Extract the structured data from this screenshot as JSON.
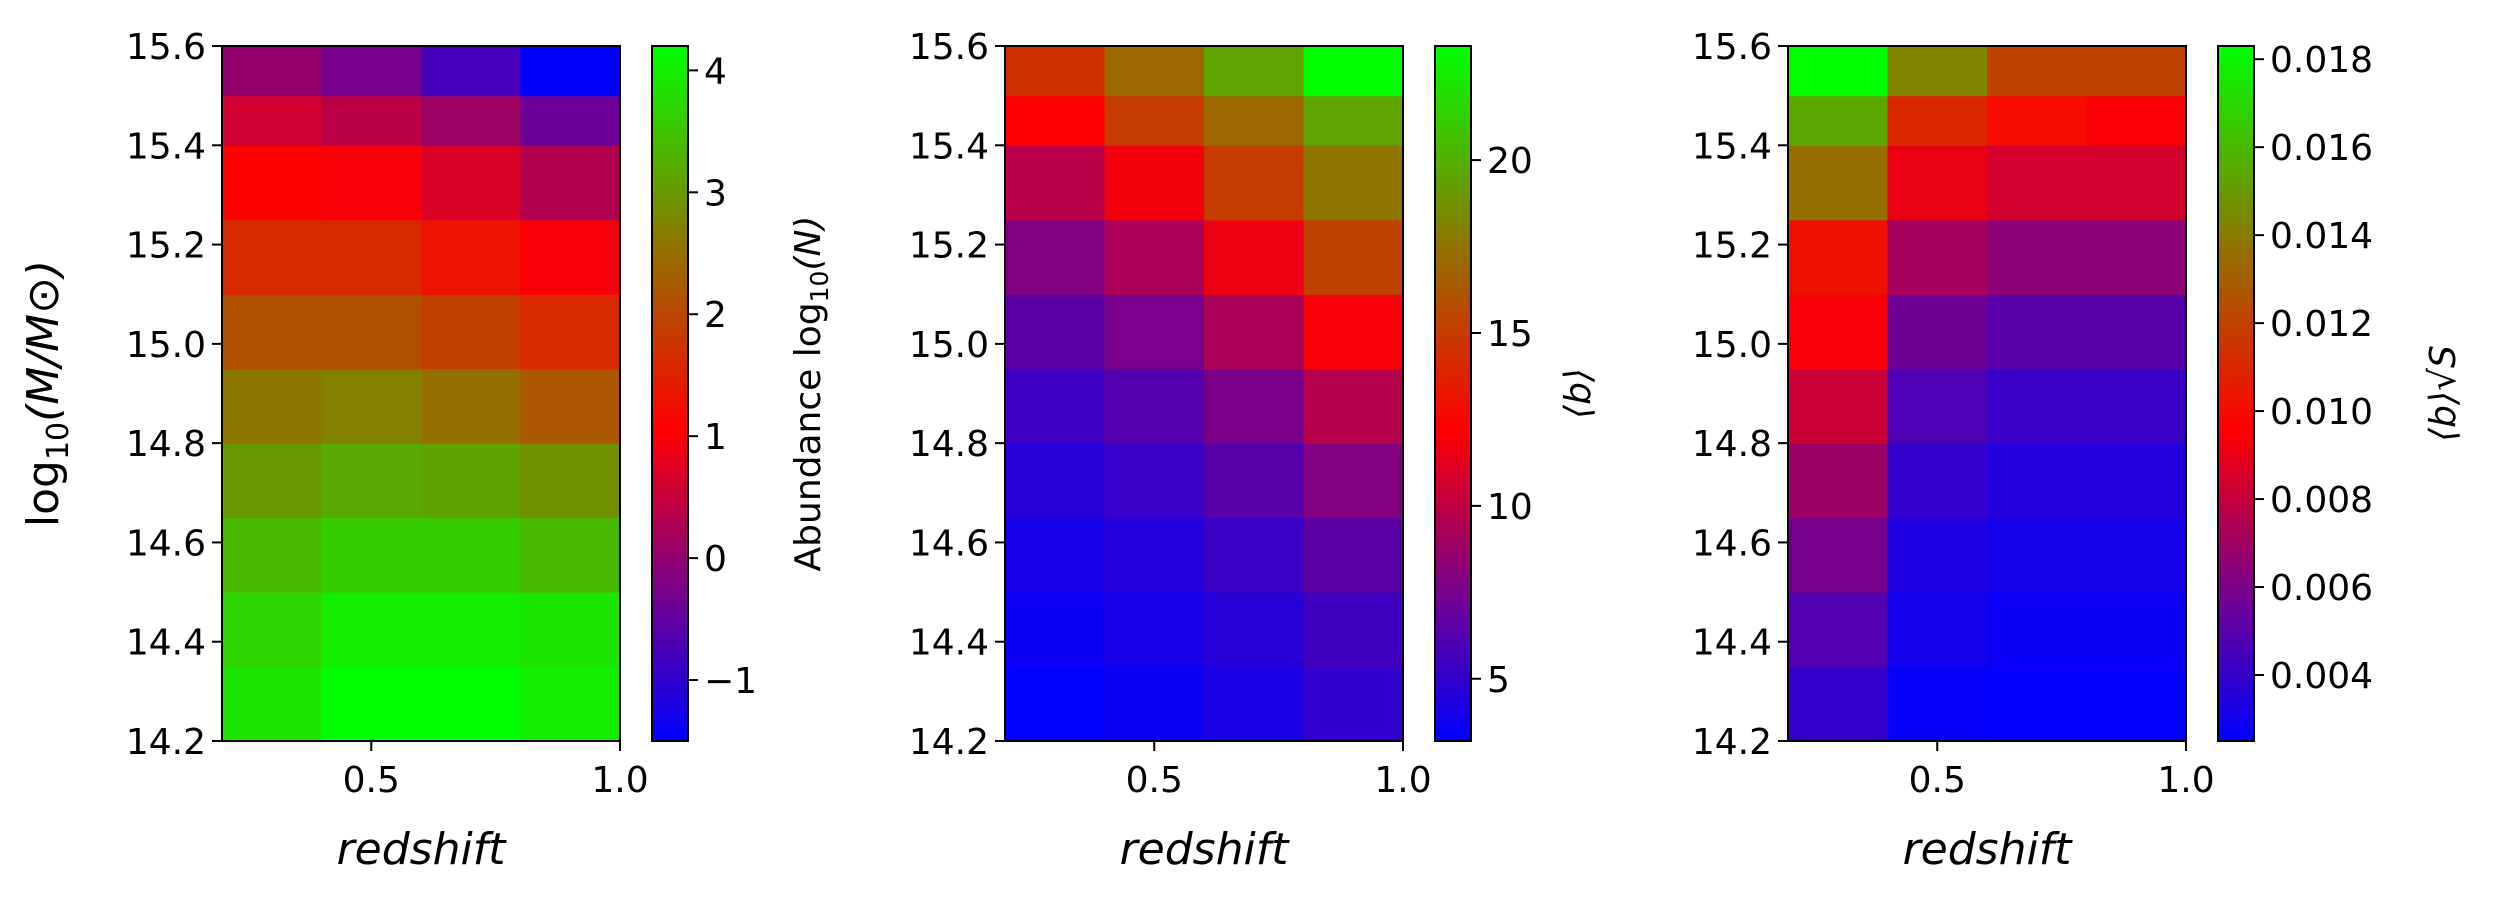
{
  "chart_data": [
    {
      "type": "heatmap",
      "xlabel": "redshift",
      "ylabel": "log10(M/M⊙)",
      "colorbar_label": "Abundance log10(N)",
      "xlim": [
        0.2,
        1.0
      ],
      "ylim": [
        14.2,
        15.6
      ],
      "x_bin_edges": [
        0.2,
        0.4,
        0.6,
        0.8,
        1.0
      ],
      "y_bin_edges": [
        14.2,
        14.35,
        14.5,
        14.65,
        14.8,
        14.95,
        15.1,
        15.25,
        15.4,
        15.5,
        15.6
      ],
      "x_ticks": [
        "0.5",
        "1.0"
      ],
      "y_ticks": [
        "14.2",
        "14.4",
        "14.6",
        "14.8",
        "15.0",
        "15.2",
        "15.4",
        "15.6"
      ],
      "colorbar_ticks": [
        "−1",
        "0",
        "1",
        "2",
        "3",
        "4"
      ],
      "colorbar_range": [
        -1.5,
        4.2
      ],
      "values_rows_bottom_to_top": [
        [
          3.9,
          4.2,
          4.2,
          4.0
        ],
        [
          3.7,
          4.0,
          4.0,
          3.9
        ],
        [
          3.4,
          3.6,
          3.6,
          3.4
        ],
        [
          3.0,
          3.2,
          3.1,
          2.9
        ],
        [
          2.6,
          2.7,
          2.5,
          2.2
        ],
        [
          2.1,
          2.1,
          1.9,
          1.6
        ],
        [
          1.6,
          1.6,
          1.3,
          1.0
        ],
        [
          1.1,
          1.0,
          0.7,
          0.3
        ],
        [
          0.6,
          0.4,
          0.1,
          -0.4
        ],
        [
          0.0,
          -0.3,
          -0.8,
          -1.5
        ]
      ]
    },
    {
      "type": "heatmap",
      "xlabel": "redshift",
      "colorbar_label": "⟨b⟩",
      "xlim": [
        0.2,
        1.0
      ],
      "ylim": [
        14.2,
        15.6
      ],
      "x_bin_edges": [
        0.2,
        0.4,
        0.6,
        0.8,
        1.0
      ],
      "y_bin_edges": [
        14.2,
        14.35,
        14.5,
        14.65,
        14.8,
        14.95,
        15.1,
        15.25,
        15.4,
        15.5,
        15.6
      ],
      "x_ticks": [
        "0.5",
        "1.0"
      ],
      "y_ticks": [
        "14.2",
        "14.4",
        "14.6",
        "14.8",
        "15.0",
        "15.2",
        "15.4",
        "15.6"
      ],
      "colorbar_ticks": [
        "5",
        "10",
        "15",
        "20"
      ],
      "colorbar_range": [
        3.2,
        23.3
      ],
      "values_rows_bottom_to_top": [
        [
          3.3,
          3.6,
          4.2,
          5.0
        ],
        [
          3.6,
          4.0,
          4.6,
          5.5
        ],
        [
          4.0,
          4.5,
          5.3,
          6.5
        ],
        [
          4.6,
          5.2,
          6.3,
          7.9
        ],
        [
          5.4,
          6.2,
          7.6,
          9.7
        ],
        [
          6.5,
          7.5,
          9.3,
          12.0
        ],
        [
          7.9,
          9.3,
          11.7,
          15.3
        ],
        [
          9.8,
          11.8,
          15.0,
          17.5
        ],
        [
          12.3,
          15.0,
          17.0,
          19.5
        ],
        [
          14.5,
          17.0,
          19.5,
          23.3
        ]
      ]
    },
    {
      "type": "heatmap",
      "xlabel": "redshift",
      "colorbar_label": "⟨b⟩√S",
      "xlim": [
        0.2,
        1.0
      ],
      "ylim": [
        14.2,
        15.6
      ],
      "x_bin_edges": [
        0.2,
        0.4,
        0.6,
        0.8,
        1.0
      ],
      "y_bin_edges": [
        14.2,
        14.35,
        14.5,
        14.65,
        14.8,
        14.95,
        15.1,
        15.25,
        15.4,
        15.5,
        15.6
      ],
      "x_ticks": [
        "0.5",
        "1.0"
      ],
      "y_ticks": [
        "14.2",
        "14.4",
        "14.6",
        "14.8",
        "15.0",
        "15.2",
        "15.4",
        "15.6"
      ],
      "colorbar_ticks": [
        "0.004",
        "0.006",
        "0.008",
        "0.010",
        "0.012",
        "0.014",
        "0.016",
        "0.018"
      ],
      "colorbar_range": [
        0.0025,
        0.0183
      ],
      "values_rows_bottom_to_top": [
        [
          0.004,
          0.0027,
          0.0026,
          0.0026
        ],
        [
          0.0048,
          0.003,
          0.0028,
          0.0028
        ],
        [
          0.0058,
          0.0034,
          0.0031,
          0.0031
        ],
        [
          0.0069,
          0.004,
          0.0035,
          0.0035
        ],
        [
          0.0082,
          0.0047,
          0.0041,
          0.0041
        ],
        [
          0.0094,
          0.0056,
          0.005,
          0.005
        ],
        [
          0.0102,
          0.0072,
          0.0065,
          0.0065
        ],
        [
          0.0136,
          0.0091,
          0.0084,
          0.0084
        ],
        [
          0.0155,
          0.011,
          0.01,
          0.0095
        ],
        [
          0.0183,
          0.0142,
          0.012,
          0.012
        ]
      ]
    }
  ]
}
